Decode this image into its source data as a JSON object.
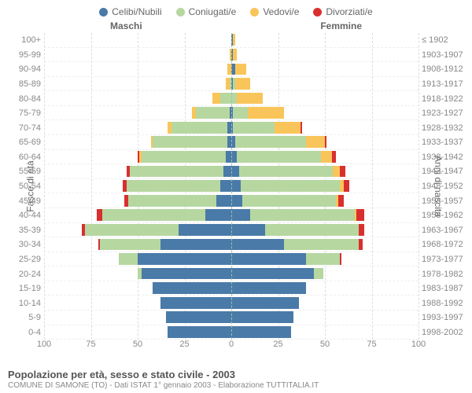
{
  "legend": [
    {
      "label": "Celibi/Nubili",
      "color": "#4a7aa8"
    },
    {
      "label": "Coniugati/e",
      "color": "#b6d7a0"
    },
    {
      "label": "Vedovi/e",
      "color": "#f9c55a"
    },
    {
      "label": "Divorziati/e",
      "color": "#d92f2f"
    }
  ],
  "header": {
    "male": "Maschi",
    "female": "Femmine"
  },
  "axis": {
    "left_label": "Fasce di età",
    "right_label": "Anni di nascita"
  },
  "x": {
    "max": 100,
    "ticks": [
      100,
      75,
      50,
      25,
      0,
      25,
      50,
      75,
      100
    ]
  },
  "age_labels": [
    "100+",
    "95-99",
    "90-94",
    "85-89",
    "80-84",
    "75-79",
    "70-74",
    "65-69",
    "60-64",
    "55-59",
    "50-54",
    "45-49",
    "40-44",
    "35-39",
    "30-34",
    "25-29",
    "20-24",
    "15-19",
    "10-14",
    "5-9",
    "0-4"
  ],
  "year_labels": [
    "≤ 1902",
    "1903-1907",
    "1908-1912",
    "1913-1917",
    "1918-1922",
    "1923-1927",
    "1928-1932",
    "1933-1937",
    "1938-1942",
    "1943-1947",
    "1948-1952",
    "1953-1957",
    "1958-1962",
    "1963-1967",
    "1968-1972",
    "1973-1977",
    "1978-1982",
    "1983-1987",
    "1988-1992",
    "1993-1997",
    "1998-2002"
  ],
  "rows": [
    {
      "m": [
        0,
        0,
        0,
        0
      ],
      "f": [
        1,
        0,
        1,
        0
      ]
    },
    {
      "m": [
        0,
        0,
        1,
        0
      ],
      "f": [
        1,
        0,
        2,
        0
      ]
    },
    {
      "m": [
        0,
        0,
        2,
        0
      ],
      "f": [
        2,
        0,
        6,
        0
      ]
    },
    {
      "m": [
        0,
        1,
        2,
        0
      ],
      "f": [
        1,
        1,
        8,
        0
      ]
    },
    {
      "m": [
        0,
        6,
        4,
        0
      ],
      "f": [
        0,
        3,
        14,
        0
      ]
    },
    {
      "m": [
        1,
        18,
        2,
        0
      ],
      "f": [
        1,
        8,
        19,
        0
      ]
    },
    {
      "m": [
        2,
        30,
        2,
        0
      ],
      "f": [
        1,
        22,
        14,
        1
      ]
    },
    {
      "m": [
        2,
        40,
        1,
        0
      ],
      "f": [
        2,
        38,
        10,
        1
      ]
    },
    {
      "m": [
        3,
        45,
        1,
        1
      ],
      "f": [
        3,
        45,
        6,
        2
      ]
    },
    {
      "m": [
        4,
        50,
        0,
        2
      ],
      "f": [
        4,
        50,
        4,
        3
      ]
    },
    {
      "m": [
        6,
        50,
        0,
        2
      ],
      "f": [
        5,
        53,
        2,
        3
      ]
    },
    {
      "m": [
        8,
        47,
        0,
        2
      ],
      "f": [
        6,
        50,
        1,
        3
      ]
    },
    {
      "m": [
        14,
        55,
        0,
        3
      ],
      "f": [
        10,
        56,
        1,
        4
      ]
    },
    {
      "m": [
        28,
        50,
        0,
        2
      ],
      "f": [
        18,
        50,
        0,
        3
      ]
    },
    {
      "m": [
        38,
        32,
        0,
        1
      ],
      "f": [
        28,
        40,
        0,
        2
      ]
    },
    {
      "m": [
        50,
        10,
        0,
        0
      ],
      "f": [
        40,
        18,
        0,
        1
      ]
    },
    {
      "m": [
        48,
        2,
        0,
        0
      ],
      "f": [
        44,
        5,
        0,
        0
      ]
    },
    {
      "m": [
        42,
        0,
        0,
        0
      ],
      "f": [
        40,
        0,
        0,
        0
      ]
    },
    {
      "m": [
        38,
        0,
        0,
        0
      ],
      "f": [
        36,
        0,
        0,
        0
      ]
    },
    {
      "m": [
        35,
        0,
        0,
        0
      ],
      "f": [
        33,
        0,
        0,
        0
      ]
    },
    {
      "m": [
        34,
        0,
        0,
        0
      ],
      "f": [
        32,
        0,
        0,
        0
      ]
    }
  ],
  "footer": {
    "title": "Popolazione per età, sesso e stato civile - 2003",
    "sub": "COMUNE DI SAMONE (TO) - Dati ISTAT 1° gennaio 2003 - Elaborazione TUTTITALIA.IT"
  }
}
